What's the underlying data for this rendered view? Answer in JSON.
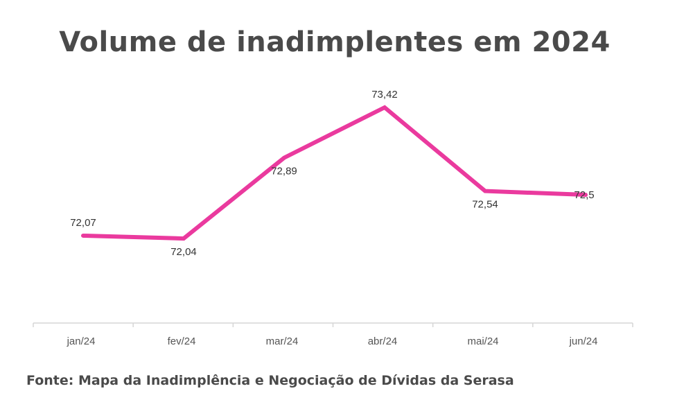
{
  "colors": {
    "line": "#ea3a9e",
    "axis": "#d6d6d6",
    "title": "#4a4a4a"
  },
  "source_text": "Fonte: Mapa da Inadimplência e Negociação de Dívidas da Serasa",
  "chart_data": {
    "type": "line",
    "title": "Volume de inadimplentes em 2024",
    "categories": [
      "jan/24",
      "fev/24",
      "mar/24",
      "abr/24",
      "mai/24",
      "jun/24"
    ],
    "series": [
      {
        "values": [
          72.07,
          72.04,
          72.89,
          73.42,
          72.54,
          72.5
        ]
      }
    ],
    "data_labels": [
      "72,07",
      "72,04",
      "72,89",
      "73,42",
      "72,54",
      "72,5"
    ],
    "data_label_positions": [
      "above",
      "below",
      "below",
      "above",
      "below",
      "center"
    ],
    "xlabel": "",
    "ylabel": "",
    "ylim": [
      71.15,
      73.42
    ],
    "grid": false,
    "legend": "none"
  }
}
